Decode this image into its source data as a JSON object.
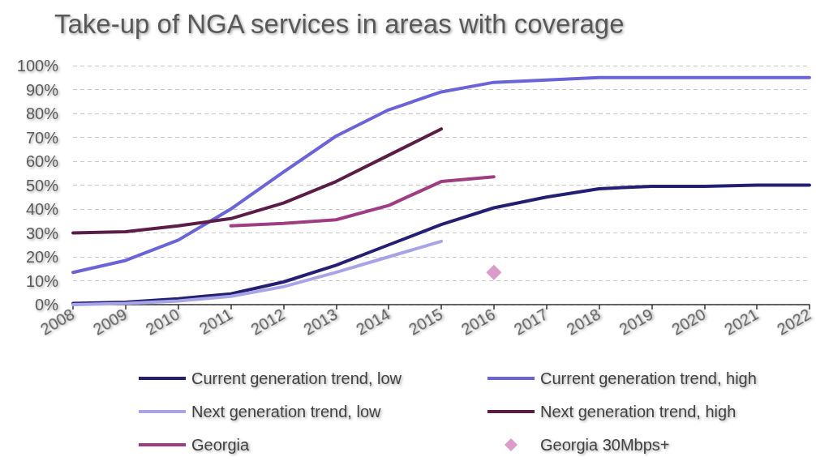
{
  "chart_data": {
    "type": "line",
    "title": "Take-up of NGA services in areas with coverage",
    "categories": [
      "2008",
      "2009",
      "2010",
      "2011",
      "2012",
      "2013",
      "2014",
      "2015",
      "2016",
      "2017",
      "2018",
      "2019",
      "2020",
      "2021",
      "2022"
    ],
    "series": [
      {
        "name": "Current generation trend, low",
        "color": "#231f73",
        "values": [
          0.5,
          1,
          2.5,
          4.5,
          9.5,
          16.5,
          25,
          33.5,
          40.5,
          45,
          48.5,
          49.5,
          49.5,
          50,
          50
        ]
      },
      {
        "name": "Current generation trend, high",
        "color": "#6a64d8",
        "values": [
          13.5,
          18.5,
          27,
          40,
          55.5,
          70.5,
          81.5,
          89,
          93,
          94,
          95,
          95,
          95,
          95,
          95
        ]
      },
      {
        "name": "Next generation trend, low",
        "color": "#a8a4e8",
        "values": [
          0,
          0.5,
          1.5,
          3.5,
          7.5,
          13.5,
          20,
          26.5,
          null,
          null,
          null,
          null,
          null,
          null,
          null
        ]
      },
      {
        "name": "Next generation trend, high",
        "color": "#5b1d47",
        "values": [
          30,
          30.5,
          33,
          36,
          42.5,
          51.5,
          62.5,
          73.5,
          null,
          null,
          null,
          null,
          null,
          null,
          null
        ]
      },
      {
        "name": "Georgia",
        "color": "#a03c82",
        "values": [
          null,
          null,
          null,
          33,
          34,
          35.5,
          41.5,
          51.5,
          53.5,
          null,
          null,
          null,
          null,
          null,
          null
        ]
      },
      {
        "name": "Georgia 30Mbps+",
        "color": "#d283bd",
        "type": "scatter",
        "marker": "diamond",
        "values": [
          null,
          null,
          null,
          null,
          null,
          null,
          null,
          null,
          13.5,
          null,
          null,
          null,
          null,
          null,
          null
        ]
      }
    ],
    "ylim": [
      0,
      100
    ],
    "yticks": [
      {
        "value": 0,
        "label": "0%"
      },
      {
        "value": 10,
        "label": "10%"
      },
      {
        "value": 20,
        "label": "20%"
      },
      {
        "value": 30,
        "label": "30%"
      },
      {
        "value": 40,
        "label": "40%"
      },
      {
        "value": 50,
        "label": "50%"
      },
      {
        "value": 60,
        "label": "60%"
      },
      {
        "value": 70,
        "label": "70%"
      },
      {
        "value": 80,
        "label": "80%"
      },
      {
        "value": 90,
        "label": "90%"
      },
      {
        "value": 100,
        "label": "100%"
      }
    ],
    "grid": "y",
    "legend": "bottom",
    "marker": "none",
    "line_style": "solid"
  }
}
